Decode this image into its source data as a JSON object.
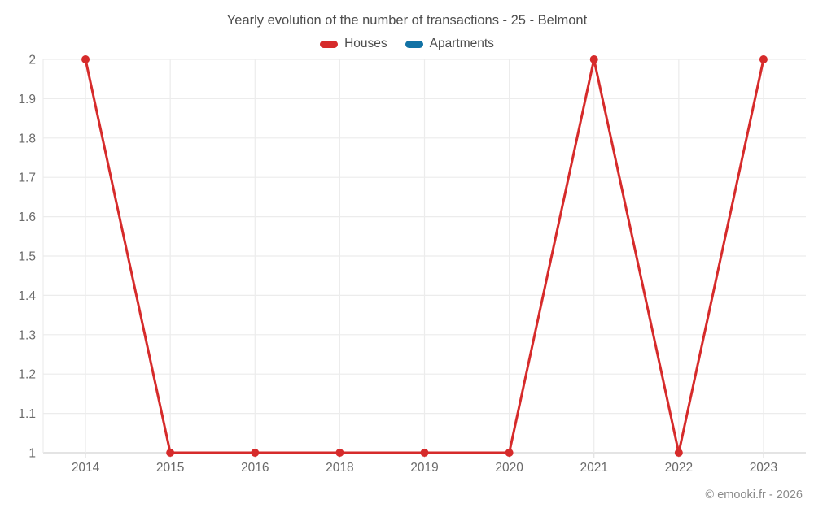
{
  "chart_data": {
    "type": "line",
    "title": "Yearly evolution of the number of transactions - 25 - Belmont",
    "categories": [
      "2014",
      "2015",
      "2016",
      "2018",
      "2019",
      "2020",
      "2021",
      "2022",
      "2023"
    ],
    "series": [
      {
        "name": "Houses",
        "color": "#d62b2b",
        "values": [
          2,
          1,
          1,
          1,
          1,
          1,
          2,
          1,
          2
        ]
      },
      {
        "name": "Apartments",
        "color": "#1272a5",
        "values": []
      }
    ],
    "xlabel": "",
    "ylabel": "",
    "ylim": [
      1,
      2
    ],
    "yticks": [
      1,
      1.1,
      1.2,
      1.3,
      1.4,
      1.5,
      1.6,
      1.7,
      1.8,
      1.9,
      2
    ],
    "ytick_labels": [
      "1",
      "1.1",
      "1.2",
      "1.3",
      "1.4",
      "1.5",
      "1.6",
      "1.7",
      "1.8",
      "1.9",
      "2"
    ],
    "grid": true,
    "legend_position": "top",
    "marker_radius": 5,
    "line_width": 3
  },
  "colors": {
    "houses": "#d62b2b",
    "apartments": "#1272a5",
    "grid_line": "#ececec",
    "axis_line": "#dcdcdc",
    "tick_mark": "#e0e0e0",
    "axis_label": "#6b6b6b",
    "title_text": "#4d4d4d",
    "footer_text": "#8a8a8a"
  },
  "footer": {
    "credit": "© emooki.fr - 2026"
  }
}
